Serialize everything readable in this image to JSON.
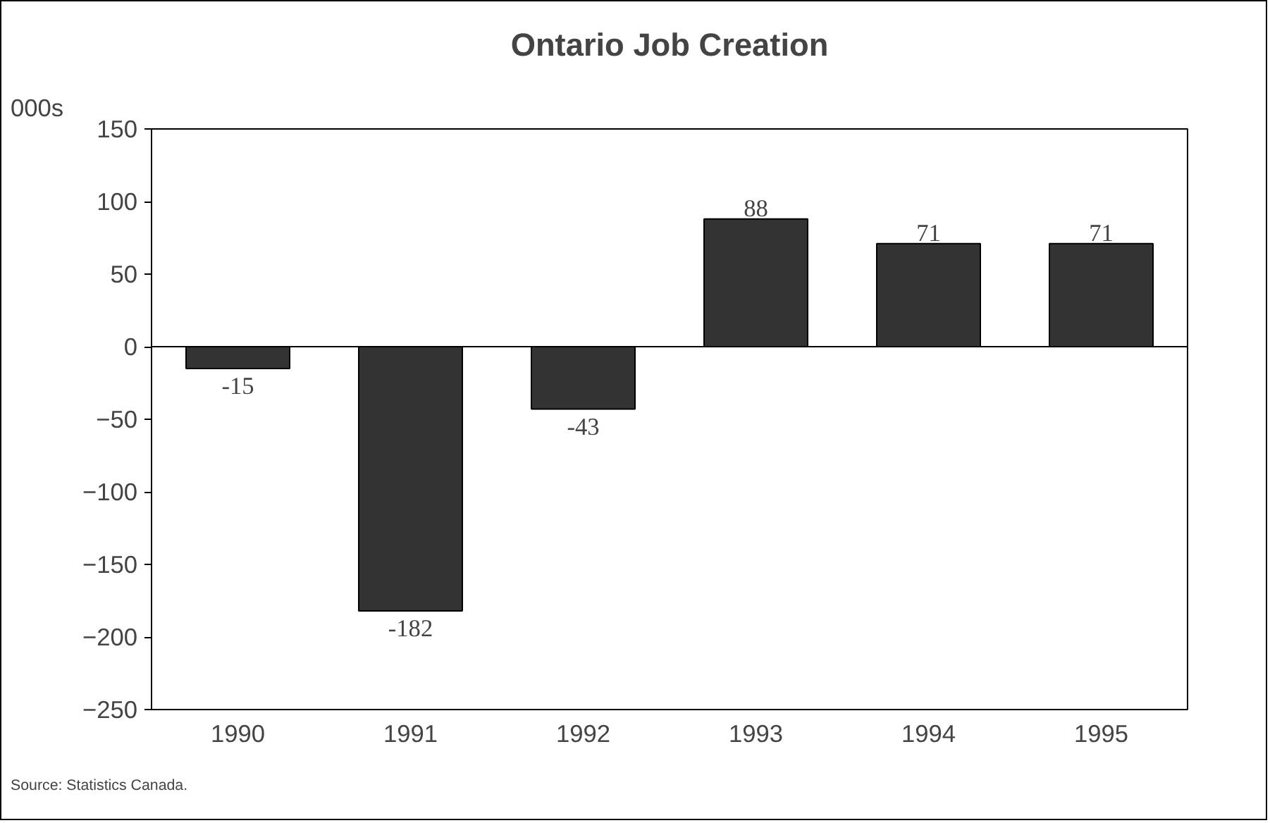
{
  "chart_data": {
    "type": "bar",
    "title": "Ontario Job Creation",
    "ylabel": "000s",
    "categories": [
      "1990",
      "1991",
      "1992",
      "1993",
      "1994",
      "1995"
    ],
    "values": [
      -15,
      -182,
      -43,
      88,
      71,
      71
    ],
    "color": "#333333",
    "ylim": [
      -250,
      150
    ],
    "yticks": [
      -250,
      -200,
      -150,
      -100,
      -50,
      0,
      50,
      100,
      150
    ],
    "data_labels": true,
    "ref_lines": [
      {
        "axis": "y",
        "value": 0,
        "color": "#000000"
      }
    ],
    "annotations": [
      "Source:  Statistics Canada."
    ]
  }
}
